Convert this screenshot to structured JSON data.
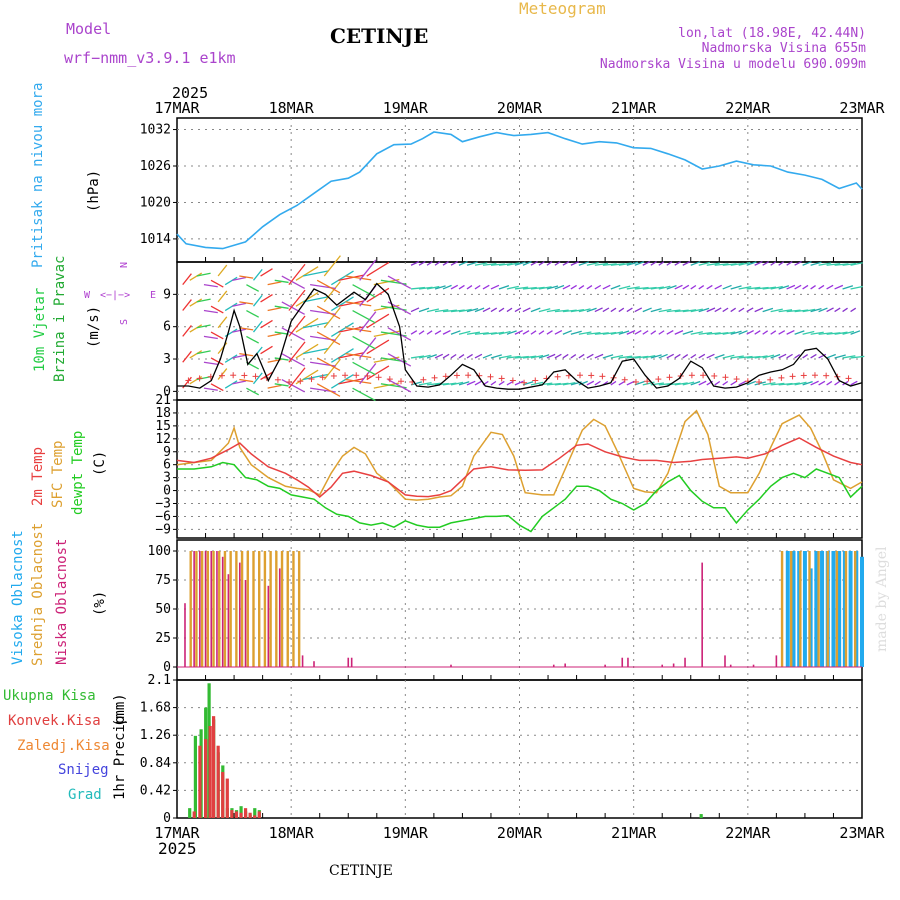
{
  "header": {
    "model_label": "Model",
    "model_name": "wrf−nmm_v3.9.1  e1km",
    "title": "CETINJE",
    "subtitle": "Meteogram",
    "coords": "lon,lat (18.98E, 42.44N)",
    "height": "Nadmorska Visina 655m",
    "model_height": "Nadmorska Visina u modelu 690.099m",
    "bottom_label": "CETINJE",
    "credit": "made by Angel"
  },
  "colors": {
    "pressure": "#33aaee",
    "model_label": "#aa44cc",
    "subtitle": "#e8b84a",
    "wind_label_a": "#22cc44",
    "wind_label_b": "#22aa33",
    "compass": "#b040d0",
    "t2m": "#e84040",
    "sfc": "#dda030",
    "dew": "#22cc22",
    "high_cloud": "#22aaee",
    "mid_cloud": "#dda030",
    "low_cloud": "#cc2277",
    "precip_total": "#33bb33",
    "precip_conv": "#e04040",
    "precip_frz": "#ee8833",
    "snow": "#4444dd",
    "grad": "#22bbbb",
    "credit": "#dddddd"
  },
  "x_axis": {
    "year": "2025",
    "ticks": [
      "17MAR",
      "18MAR",
      "19MAR",
      "20MAR",
      "21MAR",
      "22MAR",
      "23MAR"
    ]
  },
  "panels": {
    "pressure": {
      "ylabel": "Pritisak na nivou mora",
      "unit": "(hPa)"
    },
    "wind": {
      "ylabel_a": "10m Vjetar",
      "ylabel_b": "Brzina i Pravac",
      "unit": "(m/s)",
      "compass_w": "W",
      "compass_e": "E",
      "compass_n": "N",
      "compass_s": "S"
    },
    "temp": {
      "ylabel_a": "2m Temp",
      "ylabel_b": "SFC Temp",
      "ylabel_c": "dewpt Temp",
      "unit": "(C)"
    },
    "cloud": {
      "ylabel_a": "Visoka Oblacnost",
      "ylabel_b": "Srednja Oblacnost",
      "ylabel_c": "Niska Oblacnost",
      "unit": "(%)"
    },
    "precip": {
      "ylabel": "1hr Precip",
      "unit": "(mm)",
      "legend": [
        "Ukupna Kisa",
        "Konvek.Kisa",
        "Zaledj.Kisa",
        "Snijeg",
        "Grad"
      ]
    }
  },
  "chart_data": [
    {
      "type": "line",
      "name": "pressure",
      "x_unit": "days since 17MAR 00UTC",
      "ylim": [
        1010,
        1033
      ],
      "yticks": [
        1014,
        1020,
        1026,
        1032
      ],
      "ylabel": "(hPa)",
      "series": [
        {
          "name": "Pritisak na nivou mora",
          "x": [
            0,
            0.08,
            0.25,
            0.4,
            0.6,
            0.75,
            0.9,
            1.05,
            1.2,
            1.35,
            1.5,
            1.6,
            1.75,
            1.9,
            2.05,
            2.15,
            2.25,
            2.4,
            2.5,
            2.65,
            2.8,
            2.95,
            3.1,
            3.25,
            3.4,
            3.55,
            3.7,
            3.85,
            4.0,
            4.15,
            4.3,
            4.45,
            4.6,
            4.75,
            4.9,
            5.05,
            5.2,
            5.35,
            5.5,
            5.65,
            5.8,
            5.95,
            6.0
          ],
          "y": [
            1014.8,
            1013.2,
            1012.6,
            1012.4,
            1013.5,
            1016,
            1018,
            1019.5,
            1021.5,
            1023.5,
            1024,
            1025,
            1028,
            1029.5,
            1029.6,
            1030.5,
            1031.6,
            1031.2,
            1030,
            1030.8,
            1031.5,
            1031,
            1031.2,
            1031.5,
            1030.5,
            1029.6,
            1030,
            1029.8,
            1029,
            1028.9,
            1028,
            1027,
            1025.5,
            1026,
            1026.8,
            1026.2,
            1026,
            1025,
            1024.5,
            1023.8,
            1022.3,
            1023.2,
            1022.2
          ]
        }
      ]
    },
    {
      "type": "line",
      "name": "wind",
      "ylim": [
        0,
        12
      ],
      "yticks": [
        0,
        3,
        6,
        9
      ],
      "ylabel": "(m/s)",
      "series": [
        {
          "name": "gust",
          "x": [
            0,
            0.1,
            0.2,
            0.3,
            0.38,
            0.45,
            0.5,
            0.55,
            0.62,
            0.7,
            0.8,
            0.9,
            1.0,
            1.1,
            1.2,
            1.3,
            1.4,
            1.55,
            1.65,
            1.75,
            1.85,
            1.95,
            2.0,
            2.1,
            2.2,
            2.3,
            2.4,
            2.5,
            2.6,
            2.7,
            2.8,
            2.9,
            3.0,
            3.2,
            3.3,
            3.4,
            3.5,
            3.6,
            3.7,
            3.8,
            3.9,
            4.0,
            4.1,
            4.2,
            4.3,
            4.4,
            4.5,
            4.6,
            4.7,
            4.8,
            4.9,
            5.0,
            5.1,
            5.2,
            5.3,
            5.4,
            5.5,
            5.6,
            5.7,
            5.8,
            5.9,
            6.0
          ],
          "y": [
            0.5,
            0.5,
            0.3,
            1.0,
            3.0,
            5.5,
            7.5,
            6.0,
            2.5,
            3.5,
            1.0,
            3.0,
            6.5,
            8.0,
            9.5,
            9.0,
            8.0,
            9.2,
            8.5,
            10.0,
            9.0,
            6.0,
            2.0,
            0.5,
            0.4,
            0.6,
            1.5,
            2.5,
            2.0,
            0.5,
            0.3,
            0.2,
            0.2,
            0.6,
            1.8,
            2.0,
            1.0,
            0.3,
            0.5,
            0.8,
            2.8,
            3.0,
            1.5,
            0.3,
            0.5,
            1.2,
            2.8,
            2.2,
            0.5,
            0.3,
            0.4,
            0.8,
            1.5,
            1.8,
            2.0,
            2.5,
            3.8,
            4.0,
            3.0,
            1.0,
            0.5,
            0.8
          ]
        }
      ]
    },
    {
      "type": "line",
      "name": "temperature",
      "ylim": [
        -11,
        21
      ],
      "yticks": [
        -9,
        -6,
        -3,
        0,
        3,
        6,
        9,
        12,
        15,
        18,
        21
      ],
      "ylabel": "(C)",
      "series": [
        {
          "name": "2m Temp",
          "x": [
            0,
            0.15,
            0.3,
            0.45,
            0.55,
            0.65,
            0.8,
            0.95,
            1.05,
            1.15,
            1.25,
            1.35,
            1.45,
            1.55,
            1.7,
            1.85,
            2.0,
            2.1,
            2.2,
            2.3,
            2.4,
            2.5,
            2.6,
            2.75,
            2.9,
            3.05,
            3.2,
            3.35,
            3.5,
            3.6,
            3.75,
            3.9,
            4.05,
            4.2,
            4.35,
            4.5,
            4.6,
            4.75,
            4.9,
            5.0,
            5.15,
            5.3,
            5.45,
            5.6,
            5.75,
            5.9,
            6.0
          ],
          "y": [
            7,
            6.5,
            7.5,
            9.5,
            11,
            8.5,
            5.5,
            4,
            2.5,
            0.8,
            -1.5,
            0.8,
            4,
            4.5,
            3.5,
            2,
            -1,
            -1.3,
            -1.4,
            -1,
            0,
            2.5,
            5,
            5.5,
            4.8,
            4.7,
            4.8,
            7.5,
            10.5,
            10.8,
            9,
            7.8,
            7,
            7,
            6.5,
            6.8,
            7.2,
            7.5,
            7.8,
            7.5,
            8.5,
            10.5,
            12.2,
            10,
            8,
            6.5,
            6
          ]
        },
        {
          "name": "SFC Temp",
          "x": [
            0,
            0.15,
            0.3,
            0.45,
            0.5,
            0.55,
            0.65,
            0.8,
            0.95,
            1.05,
            1.15,
            1.25,
            1.35,
            1.45,
            1.55,
            1.65,
            1.75,
            1.85,
            2.0,
            2.1,
            2.2,
            2.3,
            2.4,
            2.5,
            2.6,
            2.75,
            2.85,
            2.95,
            3.05,
            3.2,
            3.3,
            3.45,
            3.55,
            3.65,
            3.75,
            3.85,
            4.0,
            4.1,
            4.2,
            4.3,
            4.45,
            4.55,
            4.65,
            4.75,
            4.85,
            5.0,
            5.1,
            5.2,
            5.3,
            5.45,
            5.55,
            5.65,
            5.75,
            5.9,
            6.0
          ],
          "y": [
            6,
            6.5,
            7,
            11,
            14.5,
            10,
            6,
            3,
            1,
            0.5,
            0.2,
            -1,
            4,
            8,
            10,
            8.5,
            4,
            2,
            -2,
            -2.2,
            -2,
            -1.5,
            -1.2,
            1,
            8,
            13.5,
            13,
            8,
            -0.5,
            -1,
            -1,
            8,
            14,
            16.5,
            15,
            9.5,
            0.5,
            -0.3,
            -0.5,
            4,
            16,
            18.5,
            13,
            1,
            -0.5,
            -0.5,
            4,
            10,
            15.5,
            17.5,
            14.5,
            9,
            2.5,
            0.5,
            2
          ]
        },
        {
          "name": "dewpt Temp",
          "x": [
            0,
            0.15,
            0.3,
            0.4,
            0.5,
            0.6,
            0.7,
            0.8,
            0.9,
            1.0,
            1.1,
            1.2,
            1.3,
            1.4,
            1.5,
            1.6,
            1.7,
            1.8,
            1.9,
            2.0,
            2.1,
            2.2,
            2.3,
            2.4,
            2.5,
            2.6,
            2.7,
            2.8,
            2.9,
            3.0,
            3.1,
            3.2,
            3.3,
            3.4,
            3.5,
            3.6,
            3.7,
            3.8,
            3.9,
            4.0,
            4.1,
            4.2,
            4.3,
            4.4,
            4.5,
            4.6,
            4.7,
            4.8,
            4.9,
            5.0,
            5.1,
            5.2,
            5.3,
            5.4,
            5.5,
            5.6,
            5.7,
            5.8,
            5.9,
            6.0
          ],
          "y": [
            5,
            5,
            5.5,
            6.5,
            6,
            3,
            2.5,
            1,
            0.5,
            -1,
            -1.5,
            -2,
            -4,
            -5.5,
            -6,
            -7.5,
            -8,
            -7.5,
            -8.5,
            -7,
            -8,
            -8.5,
            -8.5,
            -7.5,
            -7,
            -6.5,
            -6,
            -6,
            -5.8,
            -8,
            -9.5,
            -6,
            -4,
            -2,
            1,
            1,
            0,
            -2,
            -3,
            -4.5,
            -3,
            0,
            2,
            3.5,
            0,
            -2.5,
            -4,
            -4,
            -7.5,
            -4.5,
            -2,
            1,
            3,
            4,
            3,
            5,
            4,
            3,
            -1.5,
            1
          ]
        }
      ]
    },
    {
      "type": "bar",
      "name": "cloud",
      "ylim": [
        0,
        100
      ],
      "yticks": [
        0,
        25,
        50,
        75,
        100
      ],
      "ylabel": "(%)",
      "series": [
        {
          "name": "Visoka Oblacnost",
          "x": [
            5.35,
            5.4,
            5.45,
            5.5,
            5.55,
            5.6,
            5.65,
            5.7,
            5.75,
            5.8,
            5.85,
            5.9,
            5.95,
            6.0
          ],
          "values": [
            100,
            100,
            100,
            100,
            85,
            100,
            100,
            100,
            100,
            100,
            100,
            100,
            100,
            95
          ]
        },
        {
          "name": "Srednja Oblacnost",
          "x": [
            0.12,
            0.17,
            0.22,
            0.27,
            0.32,
            0.37,
            0.42,
            0.47,
            0.52,
            0.57,
            0.62,
            0.67,
            0.72,
            0.77,
            0.82,
            0.87,
            0.92,
            0.97,
            1.02,
            1.07,
            5.3,
            5.38,
            5.46,
            5.54,
            5.62,
            5.7,
            5.78,
            5.86,
            5.94
          ],
          "values": [
            100,
            100,
            100,
            100,
            100,
            100,
            100,
            100,
            100,
            100,
            100,
            100,
            100,
            100,
            100,
            100,
            100,
            100,
            100,
            100,
            100,
            100,
            100,
            100,
            100,
            100,
            100,
            100,
            100
          ]
        },
        {
          "name": "Niska Oblacnost",
          "x": [
            0.07,
            0.15,
            0.2,
            0.25,
            0.3,
            0.35,
            0.4,
            0.45,
            0.55,
            0.6,
            0.8,
            0.9,
            1.1,
            1.2,
            1.5,
            1.53,
            2.4,
            3.3,
            3.4,
            3.75,
            3.9,
            3.95,
            4.25,
            4.35,
            4.45,
            4.6,
            4.8,
            4.85,
            5.05,
            5.25
          ],
          "values": [
            55,
            100,
            100,
            100,
            100,
            100,
            95,
            80,
            90,
            75,
            70,
            85,
            10,
            5,
            8,
            8,
            2,
            2,
            3,
            2,
            8,
            8,
            2,
            3,
            8,
            90,
            10,
            2,
            2,
            10
          ]
        }
      ]
    },
    {
      "type": "bar",
      "name": "precip",
      "ylim": [
        0,
        2.1
      ],
      "yticks": [
        0,
        0.42,
        0.84,
        1.26,
        1.68,
        2.1
      ],
      "ylabel": "(mm)",
      "series": [
        {
          "name": "Ukupna Kisa",
          "x": [
            0.12,
            0.17,
            0.22,
            0.26,
            0.29,
            0.33,
            0.37,
            0.41,
            0.45,
            0.49,
            0.53,
            0.57,
            0.61,
            0.65,
            0.69,
            0.73,
            4.6
          ],
          "values": [
            0.15,
            1.25,
            1.35,
            1.68,
            2.05,
            1.5,
            1.0,
            0.8,
            0.15,
            0.15,
            0.12,
            0.18,
            0.1,
            0.05,
            0.15,
            0.12,
            0.06
          ]
        },
        {
          "name": "Konvek.Kisa",
          "x": [
            0.14,
            0.19,
            0.24,
            0.28,
            0.31,
            0.35,
            0.39,
            0.43,
            0.47,
            0.51,
            0.55,
            0.59,
            0.63,
            0.67,
            0.71
          ],
          "values": [
            0.1,
            1.1,
            1.2,
            1.4,
            1.55,
            1.1,
            0.7,
            0.6,
            0.12,
            0.1,
            0.08,
            0.15,
            0.08,
            0.04,
            0.1
          ]
        }
      ]
    }
  ]
}
